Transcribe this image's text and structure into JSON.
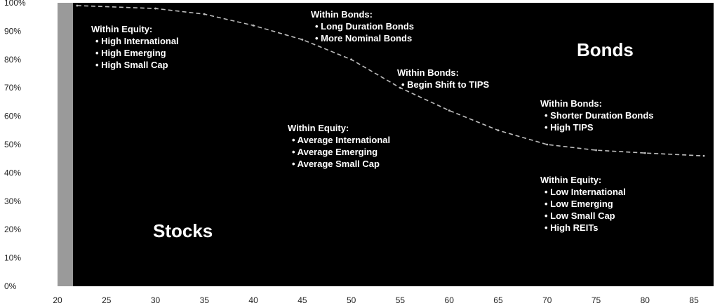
{
  "chart_data": {
    "type": "area",
    "title": "",
    "xlabel": "",
    "ylabel": "",
    "xlim": [
      20,
      87
    ],
    "ylim": [
      0,
      100
    ],
    "grid": false,
    "x_ticks": [
      "20",
      "25",
      "30",
      "35",
      "40",
      "45",
      "50",
      "55",
      "60",
      "65",
      "70",
      "75",
      "80",
      "85"
    ],
    "y_ticks": [
      "0%",
      "10%",
      "20%",
      "30%",
      "40%",
      "50%",
      "60%",
      "70%",
      "80%",
      "90%",
      "100%"
    ],
    "series": [
      {
        "name": "Stocks",
        "x": [
          22,
          30,
          35,
          40,
          45,
          50,
          55,
          60,
          65,
          70,
          75,
          80,
          86
        ],
        "y": [
          99,
          98,
          96,
          92,
          87,
          80,
          70,
          62,
          55,
          50,
          48,
          47,
          46
        ]
      }
    ],
    "region_labels": {
      "stocks": "Stocks",
      "bonds": "Bonds"
    },
    "annotations": [
      {
        "id": "a1",
        "title": "Within Equity:",
        "items": [
          "High International",
          "High Emerging",
          "High Small Cap"
        ]
      },
      {
        "id": "a2",
        "title": "Within Bonds:",
        "items": [
          "Long Duration Bonds",
          "More Nominal Bonds"
        ]
      },
      {
        "id": "a3",
        "title": "Within Bonds:",
        "items": [
          "Begin Shift to TIPS"
        ]
      },
      {
        "id": "a4",
        "title": "Within Equity:",
        "items": [
          "Average International",
          "Average Emerging",
          "Average Small Cap"
        ]
      },
      {
        "id": "a5",
        "title": "Within Bonds:",
        "items": [
          "Shorter Duration Bonds",
          "High TIPS"
        ]
      },
      {
        "id": "a6",
        "title": "Within Equity:",
        "items": [
          "Low International",
          "Low Emerging",
          "Low Small Cap",
          "High REITs"
        ]
      }
    ],
    "colors": {
      "plot_background": "#000000",
      "glide_path": "#bdbdbd",
      "text": "#ffffff",
      "left_band": "#9a9a9a"
    }
  }
}
